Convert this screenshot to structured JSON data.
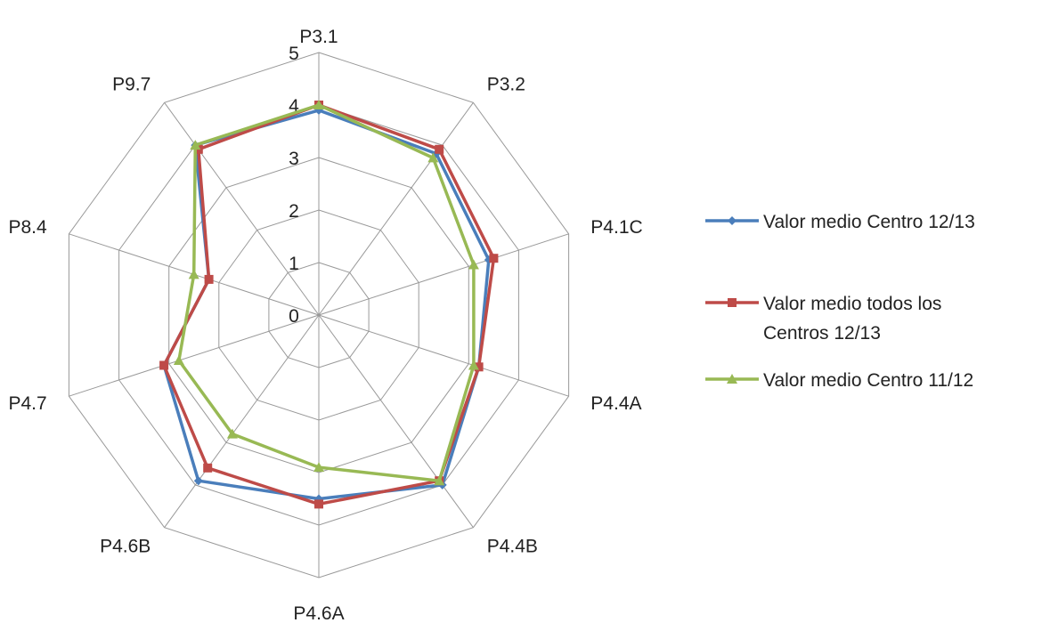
{
  "chart_data": {
    "type": "radar",
    "categories": [
      "P3.1",
      "P3.2",
      "P4.1C",
      "P4.4A",
      "P4.4B",
      "P4.6A",
      "P4.6B",
      "P4.7",
      "P8.4",
      "P9.7"
    ],
    "rlim": [
      0,
      5
    ],
    "ticks": [
      "0",
      "1",
      "2",
      "3",
      "4",
      "5"
    ],
    "series": [
      {
        "name": "Valor medio Centro 12/13",
        "values": [
          3.9,
          3.8,
          3.4,
          3.2,
          4.0,
          3.5,
          3.9,
          3.1,
          2.2,
          4.0
        ],
        "color": "#4A7EBB",
        "marker": "diamond"
      },
      {
        "name": "Valor medio todos los Centros 12/13",
        "values": [
          4.0,
          3.9,
          3.5,
          3.2,
          3.9,
          3.6,
          3.6,
          3.1,
          2.2,
          3.9
        ],
        "color": "#BE4B48",
        "marker": "square"
      },
      {
        "name": "Valor medio Centro 11/12",
        "values": [
          4.0,
          3.7,
          3.1,
          3.1,
          3.9,
          2.9,
          2.8,
          2.8,
          2.5,
          4.0
        ],
        "color": "#98B954",
        "marker": "triangle"
      }
    ],
    "legend_position": "right",
    "grid": true
  }
}
